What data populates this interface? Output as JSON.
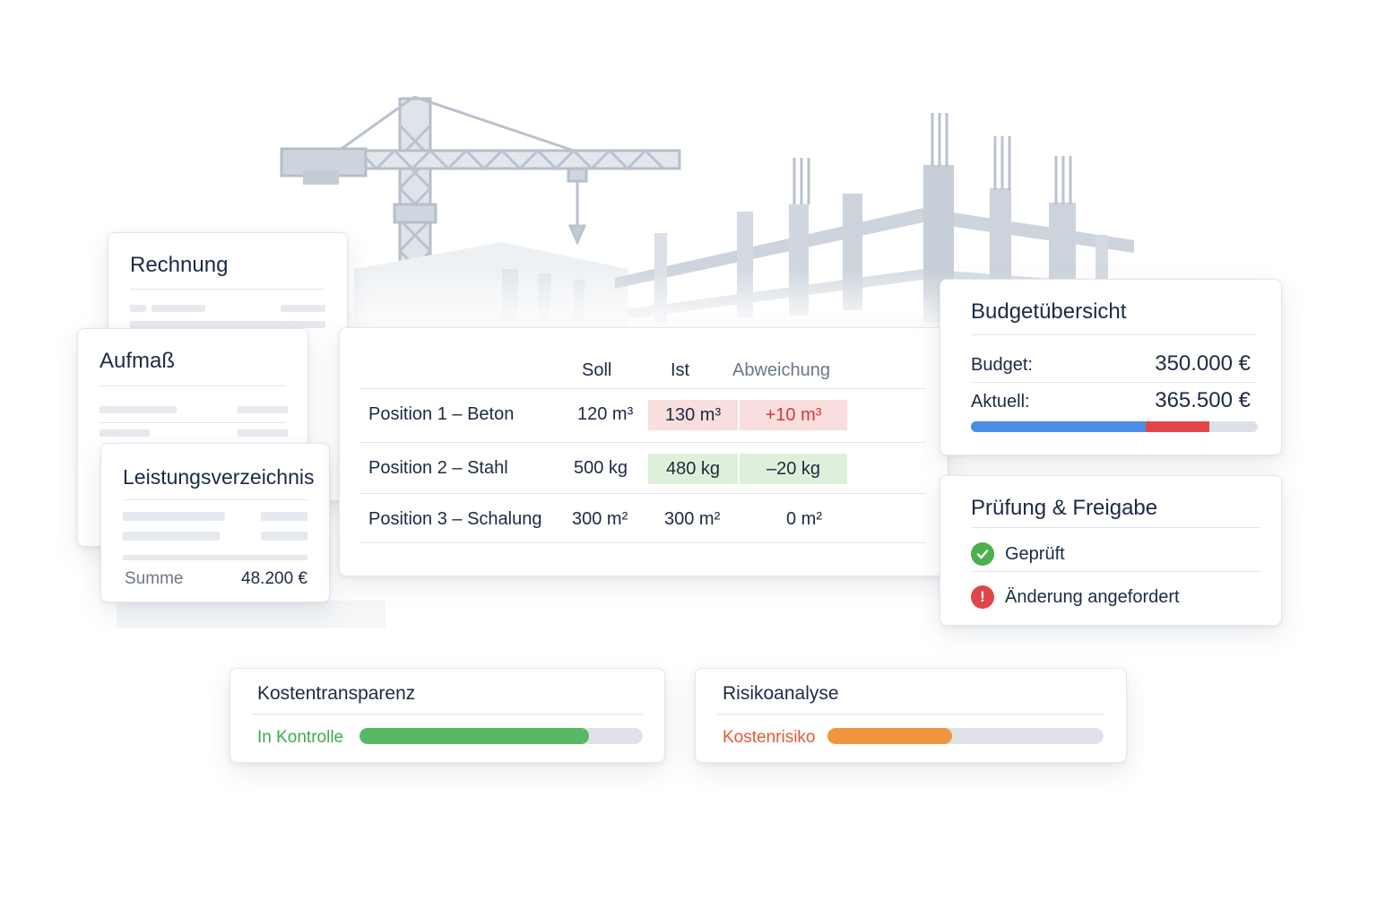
{
  "documents": {
    "rechnung": {
      "title": "Rechnung"
    },
    "aufmass": {
      "title": "Aufmaß"
    },
    "leistungsverzeichnis": {
      "title": "Leistungsverzeichnis",
      "sum_label": "Summe",
      "sum_value": "48.200 €"
    }
  },
  "table": {
    "headers": {
      "soll": "Soll",
      "ist": "Ist",
      "abweichung": "Abweichung"
    },
    "rows": [
      {
        "name": "Position 1 – Beton",
        "soll": "120 m³",
        "ist": "130 m³",
        "abweichung": "+10 m³",
        "status": "over"
      },
      {
        "name": "Position 2 – Stahl",
        "soll": "500 kg",
        "ist": "480 kg",
        "abweichung": "–20 kg",
        "status": "under"
      },
      {
        "name": "Position 3 – Schalung",
        "soll": "300 m²",
        "ist": "300 m²",
        "abweichung": "0 m²",
        "status": "ok"
      }
    ]
  },
  "budget": {
    "title": "Budgetübersicht",
    "budget_label": "Budget:",
    "budget_value": "350.000 €",
    "current_label": "Aktuell:",
    "current_value": "365.500 €",
    "bar": {
      "budget_fraction": 0.61,
      "overrun_fraction": 0.22,
      "budget_color": "#4a8ee6",
      "overrun_color": "#e2484a"
    }
  },
  "approval": {
    "title": "Prüfung & Freigabe",
    "items": [
      {
        "label": "Geprüft",
        "icon": "check-circle-icon",
        "color": "#4caf50"
      },
      {
        "label": "Änderung angefordert",
        "icon": "alert-circle-icon",
        "color": "#e14646"
      }
    ]
  },
  "cost_transparency": {
    "title": "Kostentransparenz",
    "status": "In Kontrolle",
    "status_color": "#3fa84f",
    "progress": 0.81,
    "bar_color": "#58b866"
  },
  "risk_analysis": {
    "title": "Risikoanalyse",
    "status": "Kostenrisiko",
    "status_color": "#e05a3a",
    "progress": 0.45,
    "bar_color": "#f0963c"
  }
}
